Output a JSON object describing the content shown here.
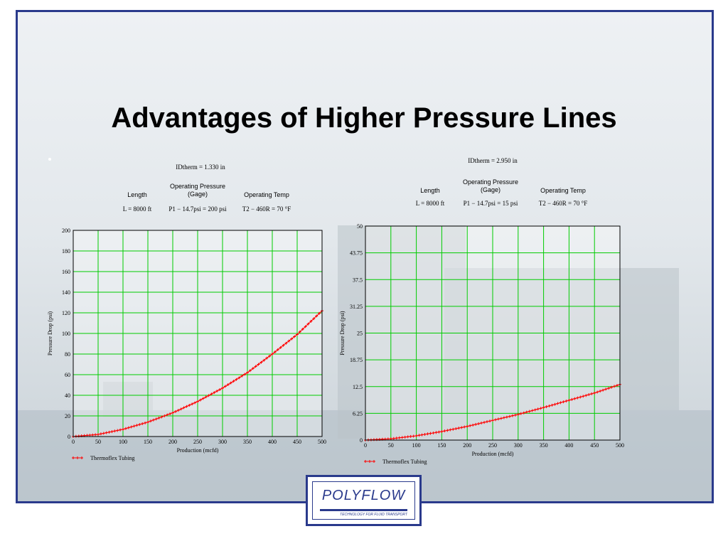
{
  "slide": {
    "title": "Advantages of Higher Pressure Lines",
    "bullet": "•"
  },
  "logo": {
    "wordmark": "POLYFLOW",
    "tagline": "TECHNOLOGY FOR FLUID TRANSPORT"
  },
  "colors": {
    "frame": "#2a3a8c",
    "grid": "#00cc00",
    "series": "#ff0000"
  },
  "chart_data": [
    {
      "type": "line",
      "idtherm": "IDtherm = 1.330 in",
      "columns": [
        {
          "header": "Length",
          "value": "L = 8000 ft"
        },
        {
          "header": "Operating Pressure\n(Gage)",
          "value": "P1 − 14.7psi = 200 psi"
        },
        {
          "header": "Operating Temp",
          "value": "T2 − 460R = 70 °F"
        }
      ],
      "xlabel": "Production (mcfd)",
      "ylabel": "Pressure Drop (psi)",
      "xlim": [
        0,
        500
      ],
      "ylim": [
        0,
        200
      ],
      "xticks": [
        "0",
        "50",
        "100",
        "150",
        "200",
        "250",
        "300",
        "350",
        "400",
        "450",
        "500"
      ],
      "yticks": [
        "0",
        "20",
        "40",
        "60",
        "80",
        "100",
        "120",
        "140",
        "160",
        "180",
        "200"
      ],
      "grid": true,
      "legend_position": "bottom-left",
      "series": [
        {
          "name": "Thermoflex Tubing",
          "marker": "+",
          "x": [
            0,
            50,
            100,
            150,
            200,
            250,
            300,
            350,
            400,
            450,
            500
          ],
          "y": [
            0,
            2,
            7,
            14,
            23,
            34,
            47,
            62,
            80,
            99,
            122
          ]
        }
      ]
    },
    {
      "type": "line",
      "idtherm": "IDtherm = 2.950 in",
      "columns": [
        {
          "header": "Length",
          "value": "L = 8000 ft"
        },
        {
          "header": "Operating Pressure\n(Gage)",
          "value": "P1 − 14.7psi = 15 psi"
        },
        {
          "header": "Operating Temp",
          "value": "T2 − 460R = 70 °F"
        }
      ],
      "xlabel": "Production (mcfd)",
      "ylabel": "Pressure Drop (psi)",
      "xlim": [
        0,
        500
      ],
      "ylim": [
        0,
        50
      ],
      "xticks": [
        "0",
        "50",
        "100",
        "150",
        "200",
        "250",
        "300",
        "350",
        "400",
        "450",
        "500"
      ],
      "yticks": [
        "0",
        "6.25",
        "12.5",
        "18.75",
        "25",
        "31.25",
        "37.5",
        "43.75",
        "50"
      ],
      "grid": true,
      "legend_position": "bottom-left",
      "series": [
        {
          "name": "Thermoflex Tubing",
          "marker": "+",
          "x": [
            0,
            50,
            100,
            150,
            200,
            250,
            300,
            350,
            400,
            450,
            500
          ],
          "y": [
            0,
            0.3,
            1.0,
            2.0,
            3.2,
            4.6,
            6.0,
            7.6,
            9.3,
            11.0,
            13.0
          ]
        }
      ]
    }
  ]
}
